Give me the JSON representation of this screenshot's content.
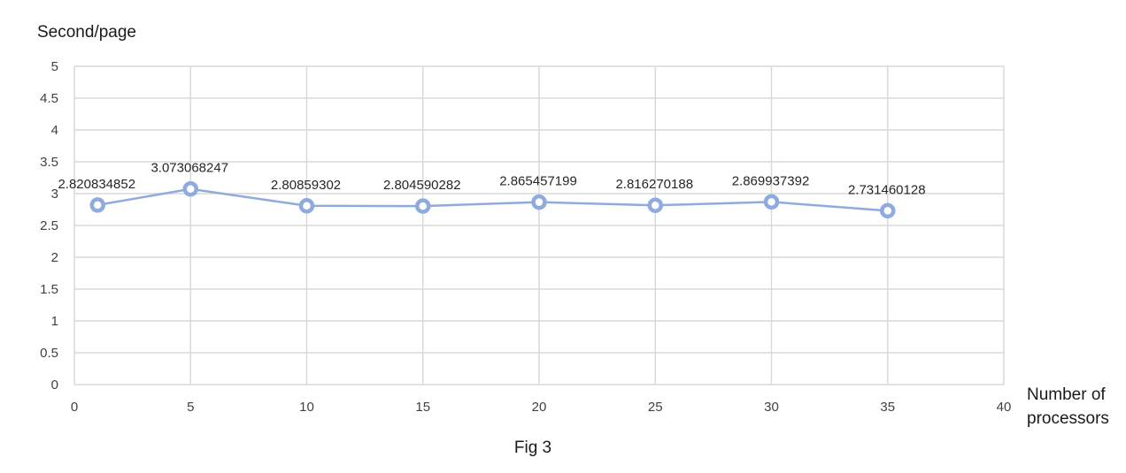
{
  "chart_data": {
    "type": "line",
    "x": [
      1,
      5,
      10,
      15,
      20,
      25,
      30,
      35
    ],
    "series": [
      {
        "values": [
          2.820834852,
          3.073068247,
          2.80859302,
          2.804590282,
          2.865457199,
          2.816270188,
          2.869937392,
          2.731460128
        ],
        "data_labels": [
          "2.820834852",
          "3.073068247",
          "2.80859302",
          "2.804590282",
          "2.865457199",
          "2.816270188",
          "2.869937392",
          "2.731460128"
        ],
        "color": "#8faadc"
      }
    ],
    "xlim": [
      0,
      40
    ],
    "ylim": [
      0,
      5
    ],
    "x_ticks": [
      "0",
      "5",
      "10",
      "15",
      "20",
      "25",
      "30",
      "35",
      "40"
    ],
    "y_ticks": [
      "0",
      "0.5",
      "1",
      "1.5",
      "2",
      "2.5",
      "3",
      "3.5",
      "4",
      "4.5",
      "5"
    ],
    "ylabel": "Second/page",
    "xlabel": [
      "Number of",
      "processors"
    ],
    "grid": true,
    "marker": "hollow-circle"
  },
  "caption": "Fig 3"
}
